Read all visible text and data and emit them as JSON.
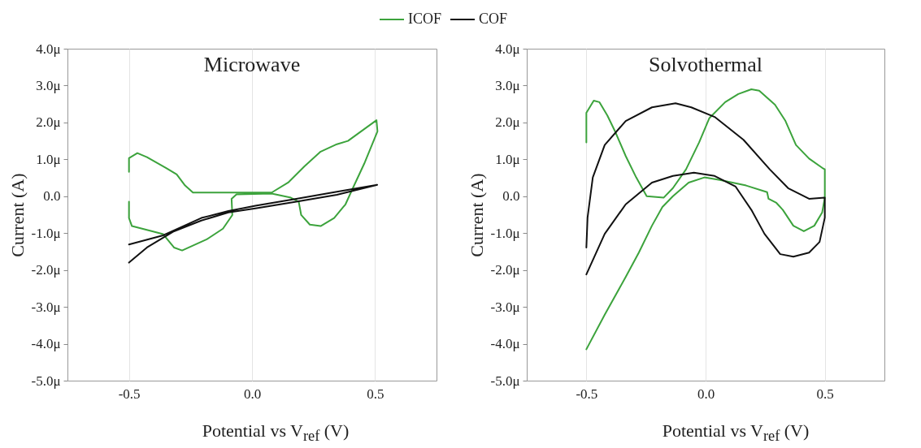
{
  "chart_data": [
    {
      "type": "line",
      "title": "Microwave",
      "xlabel": "Potential vs V$_{ref}$ (V)",
      "ylabel": "Current (A)",
      "xlim": [
        -0.75,
        0.75
      ],
      "xticks": [
        {
          "value": -0.5,
          "label": "-0.5"
        },
        {
          "value": 0,
          "label": "0.0"
        },
        {
          "value": 0.5,
          "label": "0.5"
        }
      ],
      "ylim": [
        -5,
        4
      ],
      "yticks": [
        {
          "value": -5,
          "label": "-5.0μ"
        },
        {
          "value": -4,
          "label": "-4.0μ"
        },
        {
          "value": -3,
          "label": "-3.0μ"
        },
        {
          "value": -2,
          "label": "-2.0μ"
        },
        {
          "value": -1,
          "label": "-1.0μ"
        },
        {
          "value": 0,
          "label": "0.0"
        },
        {
          "value": 1,
          "label": "1.0μ"
        },
        {
          "value": 2,
          "label": "2.0μ"
        },
        {
          "value": 3,
          "label": "3.0μ"
        },
        {
          "value": 4,
          "label": "4.0μ"
        }
      ],
      "grid": "x",
      "legend": "top",
      "series": [
        {
          "name": "ICOF",
          "color": "#3ca33c",
          "x": [
            -0.5,
            -0.5,
            -0.466,
            -0.427,
            -0.35,
            -0.306,
            -0.272,
            -0.24,
            0.08,
            0.147,
            0.213,
            0.279,
            0.345,
            0.39,
            0.506,
            0.51,
            0.456,
            0.41,
            0.38,
            0.37,
            0.334,
            0.279,
            0.235,
            0.2,
            0.19,
            0.158,
            0.08,
            -0.063,
            -0.083,
            -0.08,
            -0.118,
            -0.184,
            -0.284,
            -0.317,
            -0.361,
            -0.405,
            -0.488,
            -0.5,
            -0.5
          ],
          "values": [
            0.66,
            1.03,
            1.17,
            1.06,
            0.77,
            0.59,
            0.29,
            0.1,
            0.1,
            0.37,
            0.81,
            1.21,
            1.41,
            1.5,
            2.06,
            1.76,
            0.88,
            0.22,
            -0.22,
            -0.3,
            -0.59,
            -0.81,
            -0.77,
            -0.51,
            -0.15,
            -0.04,
            0.07,
            0.05,
            -0.07,
            -0.51,
            -0.88,
            -1.17,
            -1.47,
            -1.39,
            -1.03,
            -0.95,
            -0.81,
            -0.59,
            -0.15
          ]
        },
        {
          "name": "COF",
          "color": "#111111",
          "x": [
            -0.5,
            -0.361,
            -0.206,
            -0.096,
            0.014,
            0.18,
            0.345,
            0.509,
            0.345,
            0.18,
            0.014,
            -0.096,
            -0.206,
            -0.317,
            -0.427,
            -0.5
          ],
          "values": [
            -1.31,
            -1.06,
            -0.59,
            -0.4,
            -0.26,
            -0.07,
            0.12,
            0.31,
            0.04,
            -0.15,
            -0.33,
            -0.44,
            -0.66,
            -0.95,
            -1.39,
            -1.8
          ]
        }
      ]
    },
    {
      "type": "line",
      "title": "Solvothermal",
      "xlabel": "Potential vs V$_{ref}$ (V)",
      "ylabel": "Current (A)",
      "xlim": [
        -0.75,
        0.75
      ],
      "xticks": [
        {
          "value": -0.5,
          "label": "-0.5"
        },
        {
          "value": 0,
          "label": "0.0"
        },
        {
          "value": 0.5,
          "label": "0.5"
        }
      ],
      "ylim": [
        -5,
        4
      ],
      "yticks": [
        {
          "value": -5,
          "label": "-5.0μ"
        },
        {
          "value": -4,
          "label": "-4.0μ"
        },
        {
          "value": -3,
          "label": "-3.0μ"
        },
        {
          "value": -2,
          "label": "-2.0μ"
        },
        {
          "value": -1,
          "label": "-1.0μ"
        },
        {
          "value": 0,
          "label": "0.0"
        },
        {
          "value": 1,
          "label": "1.0μ"
        },
        {
          "value": 2,
          "label": "2.0μ"
        },
        {
          "value": 3,
          "label": "3.0μ"
        },
        {
          "value": 4,
          "label": "4.0μ"
        }
      ],
      "grid": "x",
      "legend": "top",
      "series": [
        {
          "name": "ICOF",
          "color": "#3ca33c",
          "x": [
            -0.5,
            -0.5,
            -0.469,
            -0.445,
            -0.412,
            -0.379,
            -0.335,
            -0.291,
            -0.247,
            -0.176,
            -0.137,
            -0.082,
            -0.027,
            0.016,
            0.082,
            0.137,
            0.192,
            0.225,
            0.291,
            0.335,
            0.379,
            0.434,
            0.489,
            0.5,
            0.5,
            0.489,
            0.456,
            0.412,
            0.368,
            0.324,
            0.297,
            0.264,
            0.258,
            0.17,
            0.06,
            -0.005,
            -0.071,
            -0.137,
            -0.181,
            -0.225,
            -0.28,
            -0.335,
            -0.423,
            -0.5
          ],
          "values": [
            1.46,
            2.26,
            2.59,
            2.55,
            2.19,
            1.75,
            1.09,
            0.51,
            0,
            -0.04,
            0.22,
            0.73,
            1.46,
            2.12,
            2.55,
            2.77,
            2.9,
            2.86,
            2.48,
            2.04,
            1.39,
            1.02,
            0.77,
            0.73,
            -0.04,
            -0.44,
            -0.8,
            -0.95,
            -0.8,
            -0.37,
            -0.18,
            -0.07,
            0.11,
            0.29,
            0.44,
            0.51,
            0.37,
            0,
            -0.29,
            -0.8,
            -1.53,
            -2.19,
            -3.21,
            -4.15
          ]
        },
        {
          "name": "COF",
          "color": "#111111",
          "x": [
            -0.5,
            -0.495,
            -0.473,
            -0.423,
            -0.335,
            -0.225,
            -0.126,
            -0.06,
            0.038,
            0.159,
            0.269,
            0.346,
            0.434,
            0.5,
            0.5,
            0.478,
            0.434,
            0.368,
            0.313,
            0.247,
            0.192,
            0.126,
            0.038,
            -0.049,
            -0.137,
            -0.225,
            -0.335,
            -0.423,
            -0.5
          ],
          "values": [
            -1.39,
            -0.58,
            0.51,
            1.39,
            2.04,
            2.41,
            2.52,
            2.41,
            2.15,
            1.53,
            0.73,
            0.22,
            -0.07,
            -0.04,
            -0.58,
            -1.24,
            -1.53,
            -1.64,
            -1.57,
            -1.02,
            -0.37,
            0.26,
            0.55,
            0.64,
            0.55,
            0.37,
            -0.22,
            -1.02,
            -2.12
          ]
        }
      ]
    }
  ]
}
